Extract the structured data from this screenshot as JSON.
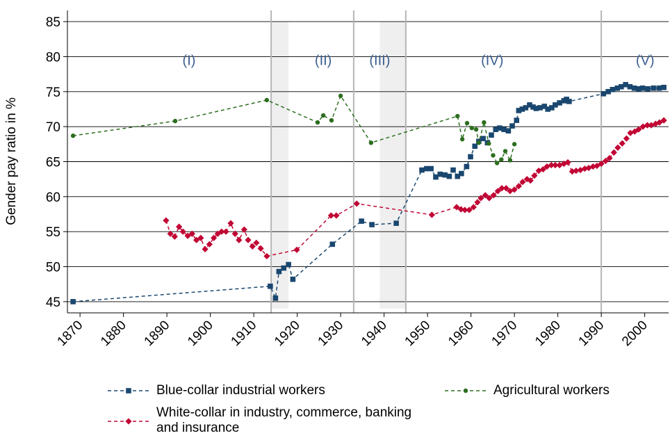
{
  "chart_data": {
    "type": "line",
    "y_label": "Gender pay ratio in %",
    "xlim": [
      1867.1,
      2005.5
    ],
    "ylim": [
      43.4,
      86.6
    ],
    "xticks": [
      1870,
      1880,
      1890,
      1900,
      1910,
      1920,
      1930,
      1940,
      1950,
      1960,
      1970,
      1980,
      1990,
      2000
    ],
    "yticks": [
      45,
      50,
      55,
      60,
      65,
      70,
      75,
      80,
      85
    ],
    "grid": true,
    "vlines": [
      1914,
      1933,
      1945,
      1990
    ],
    "shaded_periods": [
      {
        "from": 1914,
        "to": 1918,
        "ymin": 44,
        "ymax": 85
      },
      {
        "from": 1939,
        "to": 1945,
        "ymin": 44,
        "ymax": 85
      }
    ],
    "annotations": [
      {
        "text": "(I)",
        "x": 1895.1,
        "y": 78.8
      },
      {
        "text": "(II)",
        "x": 1926,
        "y": 78.8
      },
      {
        "text": "(III)",
        "x": 1939,
        "y": 78.8
      },
      {
        "text": "(IV)",
        "x": 1964.9,
        "y": 78.8
      },
      {
        "text": "(V)",
        "x": 2000.1,
        "y": 78.8
      }
    ],
    "annotation_color": "#3b5f8f",
    "series": [
      {
        "name": "Blue-collar industrial workers",
        "color": "#1a476f",
        "marker": "square",
        "x": [
          1868.4,
          1913.8,
          1915.0,
          1915.8,
          1916.9,
          1918.0,
          1919.0,
          1928.1,
          1934.8,
          1937.2,
          1942.8,
          1948.7,
          1949.8,
          1950.8,
          1951.9,
          1952.9,
          1954.0,
          1955.0,
          1955.9,
          1956.9,
          1957.8,
          1959.0,
          1959.9,
          1960.9,
          1961.8,
          1962.8,
          1963.8,
          1964.7,
          1965.7,
          1966.6,
          1967.6,
          1968.6,
          1969.5,
          1970.5,
          1971.0,
          1971.8,
          1972.6,
          1973.5,
          1974.3,
          1975.0,
          1975.9,
          1976.9,
          1977.7,
          1978.6,
          1979.4,
          1980.4,
          1981.4,
          1982.0,
          1982.6,
          1990.5,
          1991.6,
          1992.6,
          1993.7,
          1994.6,
          1995.6,
          1996.6,
          1997.6,
          1998.6,
          1999.5,
          2000.7,
          2002.0,
          2003.3,
          2004.4
        ],
        "values": [
          45.0,
          47.2,
          45.5,
          49.3,
          49.8,
          50.3,
          48.2,
          53.2,
          56.5,
          56.0,
          56.2,
          63.8,
          64.0,
          64.0,
          62.8,
          63.2,
          63.1,
          62.9,
          63.8,
          62.9,
          63.3,
          64.3,
          65.7,
          67.2,
          67.9,
          68.3,
          67.7,
          68.8,
          69.6,
          69.8,
          69.6,
          69.4,
          70.1,
          70.9,
          72.3,
          72.5,
          72.7,
          73.1,
          72.8,
          72.6,
          72.7,
          72.9,
          72.5,
          72.7,
          73.1,
          73.4,
          73.7,
          73.9,
          73.6,
          74.7,
          75.0,
          75.3,
          75.5,
          75.7,
          76.0,
          75.7,
          75.5,
          75.4,
          75.5,
          75.4,
          75.5,
          75.5,
          75.6
        ]
      },
      {
        "name": "Agricultural workers",
        "color": "#2c6e1e",
        "marker": "circle",
        "x": [
          1868.4,
          1891.9,
          1913.0,
          1924.7,
          1926.0,
          1927.9,
          1930.0,
          1937.0,
          1956.9,
          1958.0,
          1959.1,
          1960.2,
          1961.2,
          1961.8,
          1963.0,
          1964.1,
          1965.1,
          1966.0,
          1967.0,
          1967.9,
          1969.0,
          1970.0
        ],
        "values": [
          68.7,
          70.8,
          73.8,
          70.6,
          71.6,
          70.9,
          74.4,
          67.7,
          71.5,
          68.2,
          70.5,
          69.8,
          69.6,
          67.7,
          70.6,
          67.6,
          65.9,
          64.8,
          65.3,
          66.5,
          65.2,
          67.5
        ]
      },
      {
        "name": "White-collar in industry, commerce, banking and insurance",
        "color": "#c10534",
        "marker": "diamond",
        "x": [
          1889.8,
          1890.8,
          1891.8,
          1892.8,
          1893.7,
          1894.8,
          1895.8,
          1896.8,
          1897.8,
          1898.8,
          1899.8,
          1900.8,
          1901.7,
          1902.6,
          1903.6,
          1904.7,
          1905.7,
          1906.6,
          1907.8,
          1908.7,
          1909.7,
          1910.6,
          1911.6,
          1913.0,
          1919.9,
          1927.8,
          1929.0,
          1933.7,
          1951.0,
          1956.7,
          1957.7,
          1958.6,
          1959.6,
          1960.6,
          1961.5,
          1962.3,
          1963.3,
          1964.2,
          1965.2,
          1966.2,
          1967.1,
          1968.1,
          1969.0,
          1970.0,
          1971.0,
          1971.9,
          1972.9,
          1973.7,
          1974.6,
          1975.6,
          1976.6,
          1977.5,
          1978.5,
          1979.4,
          1980.4,
          1981.4,
          1982.3,
          1983.3,
          1984.2,
          1985.2,
          1986.2,
          1987.1,
          1988.1,
          1989.0,
          1990.0,
          1991.0,
          1991.9,
          1992.9,
          1993.8,
          1994.8,
          1995.8,
          1996.7,
          1997.7,
          1998.6,
          1999.6,
          2000.6,
          2001.5,
          2002.5,
          2003.4,
          2004.4
        ],
        "values": [
          56.6,
          54.7,
          54.3,
          55.7,
          55.0,
          54.4,
          54.7,
          53.8,
          54.1,
          52.5,
          53.2,
          54.1,
          54.7,
          55.0,
          55.0,
          56.2,
          54.7,
          53.8,
          55.3,
          53.8,
          52.9,
          53.4,
          52.6,
          51.5,
          52.4,
          57.3,
          57.3,
          59.0,
          57.4,
          58.5,
          58.2,
          58.1,
          58.1,
          58.5,
          59.2,
          59.8,
          60.2,
          59.8,
          60.2,
          60.8,
          61.2,
          61.2,
          60.8,
          61.0,
          61.5,
          62.1,
          62.5,
          62.3,
          63.0,
          63.7,
          63.9,
          64.3,
          64.5,
          64.5,
          64.5,
          64.7,
          64.9,
          63.6,
          63.7,
          63.8,
          64.0,
          64.1,
          64.3,
          64.4,
          64.7,
          65.1,
          65.5,
          66.3,
          67.0,
          67.6,
          68.3,
          69.1,
          69.3,
          69.6,
          70.0,
          70.2,
          70.2,
          70.4,
          70.6,
          70.9
        ]
      }
    ]
  }
}
